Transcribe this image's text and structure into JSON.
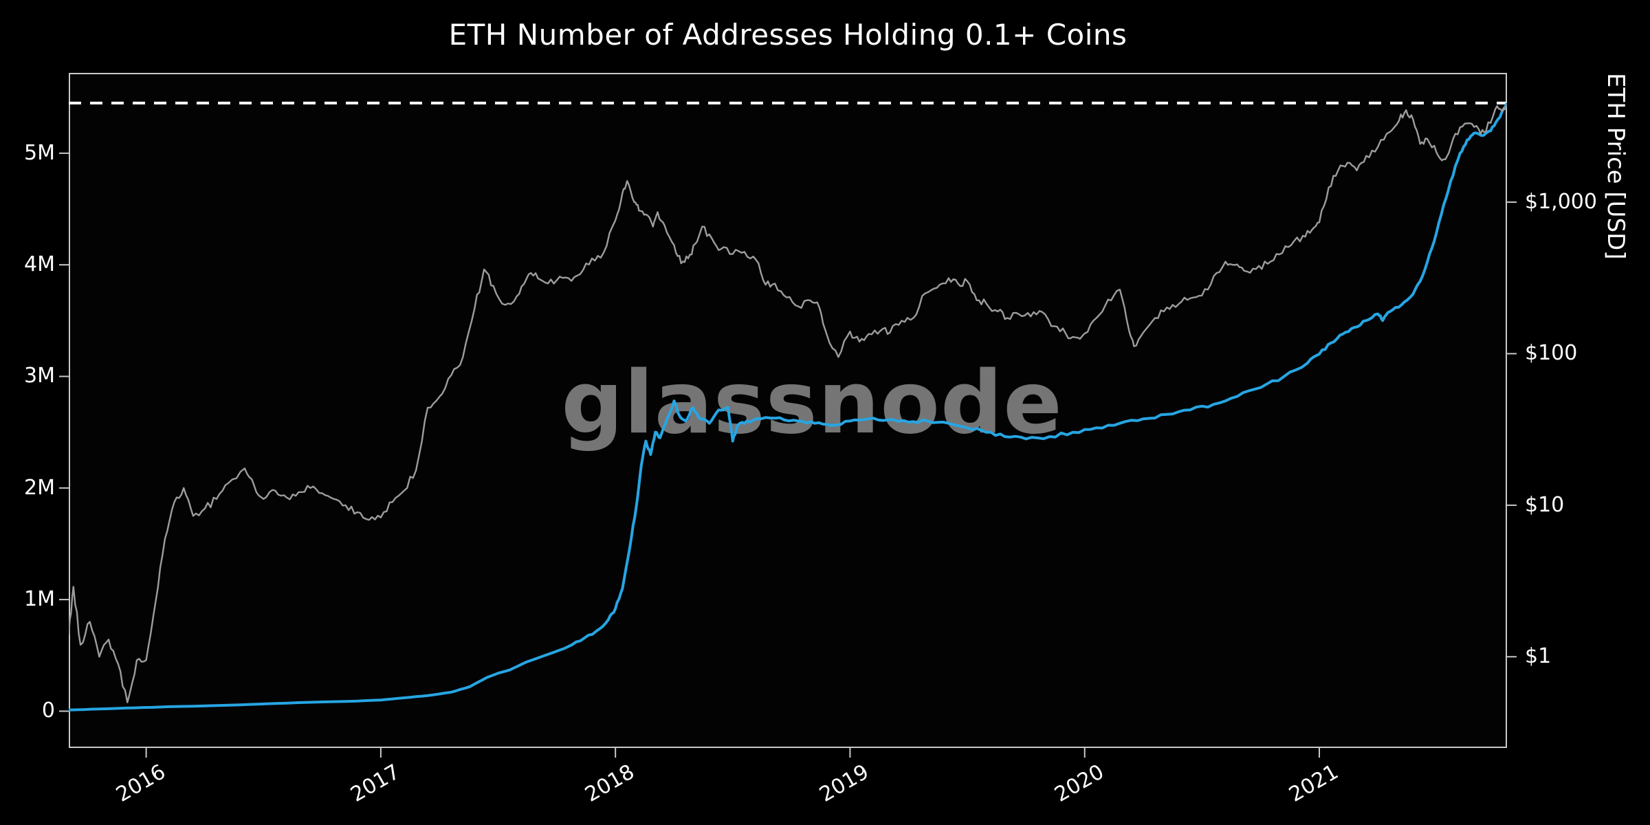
{
  "title": "ETH Number of Addresses Holding 0.1+ Coins",
  "watermark": "glassnode",
  "colors": {
    "background": "#000000",
    "frame": "#c9c9c9",
    "text": "#ffffff",
    "addresses_line": "#27a5e3",
    "price_line": "#9d9d9d",
    "ath_line": "#ffffff",
    "watermark": "#8a8a8a"
  },
  "chart_data": {
    "type": "line",
    "title": "ETH Number of Addresses Holding 0.1+ Coins",
    "grid": false,
    "legend": "none",
    "x_axis": {
      "range": [
        2015.67,
        2021.8
      ],
      "ticks": [
        2016,
        2017,
        2018,
        2019,
        2020,
        2021
      ],
      "tick_labels": [
        "2016",
        "2017",
        "2018",
        "2019",
        "2020",
        "2021"
      ]
    },
    "left_axis": {
      "label": "",
      "scale": "linear",
      "unit": "addresses",
      "range": [
        -0.33,
        5.72
      ],
      "ticks": [
        0,
        1,
        2,
        3,
        4,
        5
      ],
      "tick_labels": [
        "0",
        "1M",
        "2M",
        "3M",
        "4M",
        "5M"
      ]
    },
    "right_axis": {
      "label": "ETH Price [USD]",
      "scale": "log",
      "unit": "USD",
      "range": [
        0.25,
        7130
      ],
      "ticks": [
        1,
        10,
        100,
        1000
      ],
      "tick_labels": [
        "$1",
        "$10",
        "$100",
        "$1,000"
      ]
    },
    "ath_line": {
      "axis": "left",
      "value": 5.45,
      "style": "dashed",
      "color": "#ffffff"
    },
    "series": [
      {
        "name": "ETH Number of Addresses Holding 0.1+ Coins",
        "axis": "left",
        "color": "#27a5e3",
        "unit": "millions of addresses",
        "points": [
          [
            2015.67,
            0.01
          ],
          [
            2015.8,
            0.02
          ],
          [
            2015.95,
            0.03
          ],
          [
            2016.1,
            0.04
          ],
          [
            2016.3,
            0.05
          ],
          [
            2016.5,
            0.065
          ],
          [
            2016.7,
            0.08
          ],
          [
            2016.9,
            0.09
          ],
          [
            2017.0,
            0.1
          ],
          [
            2017.1,
            0.12
          ],
          [
            2017.2,
            0.14
          ],
          [
            2017.3,
            0.17
          ],
          [
            2017.38,
            0.22
          ],
          [
            2017.45,
            0.3
          ],
          [
            2017.5,
            0.34
          ],
          [
            2017.55,
            0.37
          ],
          [
            2017.62,
            0.44
          ],
          [
            2017.7,
            0.5
          ],
          [
            2017.78,
            0.56
          ],
          [
            2017.85,
            0.63
          ],
          [
            2017.92,
            0.72
          ],
          [
            2017.97,
            0.82
          ],
          [
            2018.0,
            0.92
          ],
          [
            2018.03,
            1.1
          ],
          [
            2018.06,
            1.45
          ],
          [
            2018.09,
            1.85
          ],
          [
            2018.11,
            2.2
          ],
          [
            2018.13,
            2.42
          ],
          [
            2018.15,
            2.3
          ],
          [
            2018.17,
            2.5
          ],
          [
            2018.19,
            2.45
          ],
          [
            2018.22,
            2.62
          ],
          [
            2018.25,
            2.78
          ],
          [
            2018.27,
            2.66
          ],
          [
            2018.3,
            2.6
          ],
          [
            2018.33,
            2.72
          ],
          [
            2018.36,
            2.62
          ],
          [
            2018.4,
            2.58
          ],
          [
            2018.44,
            2.7
          ],
          [
            2018.48,
            2.72
          ],
          [
            2018.5,
            2.42
          ],
          [
            2018.52,
            2.56
          ],
          [
            2018.56,
            2.6
          ],
          [
            2018.62,
            2.62
          ],
          [
            2018.7,
            2.63
          ],
          [
            2018.78,
            2.6
          ],
          [
            2018.85,
            2.58
          ],
          [
            2018.92,
            2.56
          ],
          [
            2019.0,
            2.6
          ],
          [
            2019.08,
            2.62
          ],
          [
            2019.16,
            2.61
          ],
          [
            2019.25,
            2.59
          ],
          [
            2019.33,
            2.6
          ],
          [
            2019.42,
            2.58
          ],
          [
            2019.5,
            2.54
          ],
          [
            2019.58,
            2.5
          ],
          [
            2019.66,
            2.46
          ],
          [
            2019.75,
            2.44
          ],
          [
            2019.85,
            2.46
          ],
          [
            2019.95,
            2.5
          ],
          [
            2020.05,
            2.54
          ],
          [
            2020.15,
            2.58
          ],
          [
            2020.25,
            2.62
          ],
          [
            2020.35,
            2.66
          ],
          [
            2020.45,
            2.7
          ],
          [
            2020.55,
            2.75
          ],
          [
            2020.65,
            2.82
          ],
          [
            2020.75,
            2.9
          ],
          [
            2020.85,
            3.0
          ],
          [
            2020.95,
            3.12
          ],
          [
            2021.0,
            3.2
          ],
          [
            2021.05,
            3.3
          ],
          [
            2021.1,
            3.38
          ],
          [
            2021.15,
            3.44
          ],
          [
            2021.2,
            3.5
          ],
          [
            2021.25,
            3.56
          ],
          [
            2021.27,
            3.5
          ],
          [
            2021.3,
            3.58
          ],
          [
            2021.35,
            3.64
          ],
          [
            2021.4,
            3.74
          ],
          [
            2021.44,
            3.9
          ],
          [
            2021.48,
            4.15
          ],
          [
            2021.52,
            4.45
          ],
          [
            2021.56,
            4.75
          ],
          [
            2021.6,
            5.0
          ],
          [
            2021.63,
            5.12
          ],
          [
            2021.66,
            5.18
          ],
          [
            2021.7,
            5.16
          ],
          [
            2021.73,
            5.2
          ],
          [
            2021.76,
            5.3
          ],
          [
            2021.8,
            5.45
          ]
        ]
      },
      {
        "name": "ETH Price [USD]",
        "axis": "right",
        "color": "#9d9d9d",
        "unit": "USD",
        "points": [
          [
            2015.67,
            1.4
          ],
          [
            2015.69,
            2.9
          ],
          [
            2015.72,
            1.2
          ],
          [
            2015.76,
            1.7
          ],
          [
            2015.8,
            1.0
          ],
          [
            2015.84,
            1.3
          ],
          [
            2015.88,
            0.9
          ],
          [
            2015.92,
            0.5
          ],
          [
            2015.96,
            0.95
          ],
          [
            2016.0,
            0.95
          ],
          [
            2016.04,
            2.3
          ],
          [
            2016.08,
            6.0
          ],
          [
            2016.12,
            10.5
          ],
          [
            2016.16,
            13.0
          ],
          [
            2016.2,
            8.5
          ],
          [
            2016.25,
            9.5
          ],
          [
            2016.3,
            11.0
          ],
          [
            2016.35,
            14.0
          ],
          [
            2016.42,
            17.5
          ],
          [
            2016.46,
            13.5
          ],
          [
            2016.5,
            11.0
          ],
          [
            2016.55,
            12.5
          ],
          [
            2016.6,
            11.2
          ],
          [
            2016.65,
            12.2
          ],
          [
            2016.7,
            13.0
          ],
          [
            2016.75,
            12.0
          ],
          [
            2016.8,
            11.0
          ],
          [
            2016.85,
            10.0
          ],
          [
            2016.9,
            9.0
          ],
          [
            2016.95,
            8.0
          ],
          [
            2017.0,
            8.3
          ],
          [
            2017.05,
            10.5
          ],
          [
            2017.1,
            12.5
          ],
          [
            2017.15,
            17.0
          ],
          [
            2017.2,
            44.0
          ],
          [
            2017.25,
            52.0
          ],
          [
            2017.3,
            72.0
          ],
          [
            2017.35,
            95.0
          ],
          [
            2017.4,
            200.0
          ],
          [
            2017.44,
            360.0
          ],
          [
            2017.48,
            280.0
          ],
          [
            2017.53,
            210.0
          ],
          [
            2017.58,
            240.0
          ],
          [
            2017.62,
            310.0
          ],
          [
            2017.66,
            340.0
          ],
          [
            2017.7,
            295.0
          ],
          [
            2017.75,
            305.0
          ],
          [
            2017.8,
            315.0
          ],
          [
            2017.85,
            335.0
          ],
          [
            2017.9,
            425.0
          ],
          [
            2017.95,
            465.0
          ],
          [
            2018.0,
            760.0
          ],
          [
            2018.03,
            1150.0
          ],
          [
            2018.05,
            1380.0
          ],
          [
            2018.08,
            1000.0
          ],
          [
            2018.1,
            880.0
          ],
          [
            2018.13,
            830.0
          ],
          [
            2018.16,
            690.0
          ],
          [
            2018.18,
            860.0
          ],
          [
            2018.21,
            700.0
          ],
          [
            2018.25,
            520.0
          ],
          [
            2018.28,
            395.0
          ],
          [
            2018.31,
            425.0
          ],
          [
            2018.34,
            530.0
          ],
          [
            2018.37,
            690.0
          ],
          [
            2018.41,
            580.0
          ],
          [
            2018.45,
            490.0
          ],
          [
            2018.5,
            455.0
          ],
          [
            2018.55,
            470.0
          ],
          [
            2018.6,
            415.0
          ],
          [
            2018.64,
            285.0
          ],
          [
            2018.68,
            290.0
          ],
          [
            2018.73,
            235.0
          ],
          [
            2018.78,
            205.0
          ],
          [
            2018.83,
            225.0
          ],
          [
            2018.87,
            200.0
          ],
          [
            2018.9,
            135.0
          ],
          [
            2018.95,
            95.0
          ],
          [
            2019.0,
            140.0
          ],
          [
            2019.04,
            120.0
          ],
          [
            2019.08,
            135.0
          ],
          [
            2019.13,
            142.0
          ],
          [
            2019.17,
            138.0
          ],
          [
            2019.22,
            165.0
          ],
          [
            2019.27,
            172.0
          ],
          [
            2019.32,
            250.0
          ],
          [
            2019.37,
            272.0
          ],
          [
            2019.42,
            315.0
          ],
          [
            2019.46,
            290.0
          ],
          [
            2019.5,
            300.0
          ],
          [
            2019.54,
            225.0
          ],
          [
            2019.58,
            215.0
          ],
          [
            2019.63,
            190.0
          ],
          [
            2019.67,
            172.0
          ],
          [
            2019.72,
            182.0
          ],
          [
            2019.77,
            176.0
          ],
          [
            2019.82,
            188.0
          ],
          [
            2019.87,
            152.0
          ],
          [
            2019.92,
            135.0
          ],
          [
            2019.96,
            128.0
          ],
          [
            2020.0,
            136.0
          ],
          [
            2020.05,
            172.0
          ],
          [
            2020.1,
            228.0
          ],
          [
            2020.15,
            265.0
          ],
          [
            2020.19,
            140.0
          ],
          [
            2020.21,
            112.0
          ],
          [
            2020.25,
            138.0
          ],
          [
            2020.3,
            172.0
          ],
          [
            2020.35,
            202.0
          ],
          [
            2020.4,
            212.0
          ],
          [
            2020.45,
            232.0
          ],
          [
            2020.5,
            242.0
          ],
          [
            2020.55,
            325.0
          ],
          [
            2020.6,
            405.0
          ],
          [
            2020.64,
            385.0
          ],
          [
            2020.68,
            352.0
          ],
          [
            2020.73,
            362.0
          ],
          [
            2020.78,
            392.0
          ],
          [
            2020.83,
            452.0
          ],
          [
            2020.88,
            520.0
          ],
          [
            2020.93,
            600.0
          ],
          [
            2020.97,
            660.0
          ],
          [
            2021.0,
            735.0
          ],
          [
            2021.04,
            1250.0
          ],
          [
            2021.08,
            1620.0
          ],
          [
            2021.12,
            1820.0
          ],
          [
            2021.16,
            1620.0
          ],
          [
            2021.2,
            2020.0
          ],
          [
            2021.25,
            2320.0
          ],
          [
            2021.3,
            2900.0
          ],
          [
            2021.34,
            3450.0
          ],
          [
            2021.37,
            4050.0
          ],
          [
            2021.4,
            3500.0
          ],
          [
            2021.43,
            2420.0
          ],
          [
            2021.46,
            2620.0
          ],
          [
            2021.5,
            2120.0
          ],
          [
            2021.53,
            1920.0
          ],
          [
            2021.56,
            2320.0
          ],
          [
            2021.6,
            3120.0
          ],
          [
            2021.64,
            3320.0
          ],
          [
            2021.68,
            3020.0
          ],
          [
            2021.71,
            2920.0
          ],
          [
            2021.75,
            4100.0
          ],
          [
            2021.78,
            4000.0
          ],
          [
            2021.8,
            4400.0
          ]
        ]
      }
    ]
  }
}
